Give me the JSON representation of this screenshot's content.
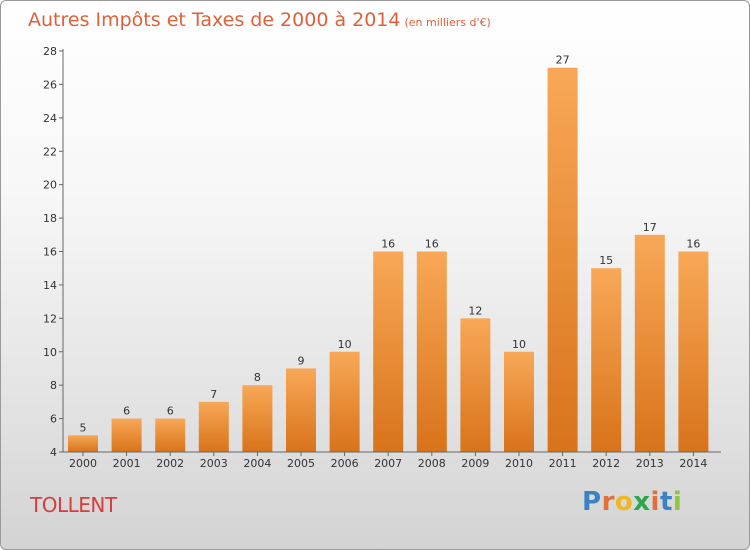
{
  "title": "Autres Impôts et Taxes de 2000 à 2014",
  "unit": "(en milliers d'€)",
  "place": "TOLLENT",
  "logo": {
    "letters": [
      "P",
      "r",
      "o",
      "x",
      "i",
      "t",
      "i"
    ],
    "colors": [
      "#3a82c4",
      "#e0703a",
      "#f0b820",
      "#2aa84a",
      "#e0703a",
      "#3a82c4",
      "#8cc63e"
    ]
  },
  "colors": {
    "bar_light": "#f8a857",
    "bar_dark": "#d8731a",
    "title": "#e0603a",
    "place": "#d93c3c"
  },
  "chart_data": {
    "type": "bar",
    "categories": [
      "2000",
      "2001",
      "2002",
      "2003",
      "2004",
      "2005",
      "2006",
      "2007",
      "2008",
      "2009",
      "2010",
      "2011",
      "2012",
      "2013",
      "2014"
    ],
    "values": [
      5,
      6,
      6,
      7,
      8,
      9,
      10,
      16,
      16,
      12,
      10,
      27,
      15,
      17,
      16
    ],
    "yticks": [
      4,
      6,
      8,
      10,
      12,
      14,
      16,
      18,
      20,
      22,
      24,
      26,
      28
    ],
    "ylim": [
      4,
      28
    ],
    "grid": false,
    "legend": "none"
  }
}
